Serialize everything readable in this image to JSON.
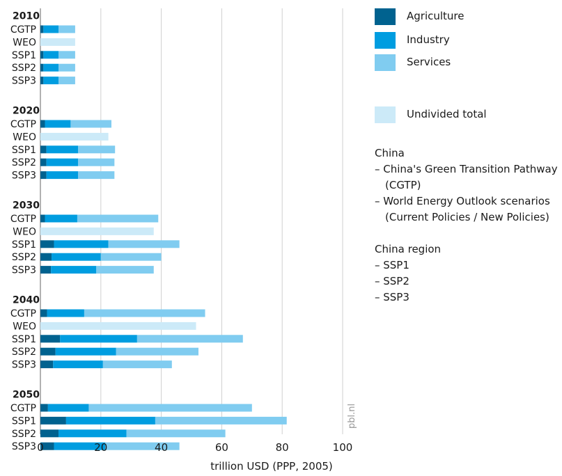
{
  "chart_data": {
    "type": "bar",
    "orientation": "horizontal",
    "stacked": true,
    "xlabel": "trillion USD (PPP, 2005)",
    "xlim": [
      0,
      100
    ],
    "xticks": [
      "0",
      "20",
      "40",
      "60",
      "80",
      "100"
    ],
    "grid": true,
    "watermark": "pbl.nl",
    "series": [
      {
        "name": "Agriculture",
        "color": "#00628f"
      },
      {
        "name": "Industry",
        "color": "#009de0"
      },
      {
        "name": "Services",
        "color": "#80ccf0"
      },
      {
        "name": "Undivided total",
        "color": "#cceaf8"
      }
    ],
    "groups": [
      {
        "year": "2010",
        "bars": [
          {
            "label": "CGTP",
            "agriculture": 1,
            "industry": 5,
            "services": 5.5
          },
          {
            "label": "WEO",
            "total": 11.5
          },
          {
            "label": "SSP1",
            "agriculture": 1,
            "industry": 5,
            "services": 5.5
          },
          {
            "label": "SSP2",
            "agriculture": 1,
            "industry": 5,
            "services": 5.5
          },
          {
            "label": "SSP3",
            "agriculture": 1,
            "industry": 5,
            "services": 5.5
          }
        ]
      },
      {
        "year": "2020",
        "bars": [
          {
            "label": "CGTP",
            "agriculture": 1.5,
            "industry": 8.5,
            "services": 13.5
          },
          {
            "label": "WEO",
            "total": 22.5
          },
          {
            "label": "SSP1",
            "agriculture": 2,
            "industry": 10.5,
            "services": 12.2
          },
          {
            "label": "SSP2",
            "agriculture": 2,
            "industry": 10.5,
            "services": 12
          },
          {
            "label": "SSP3",
            "agriculture": 2,
            "industry": 10.5,
            "services": 12
          }
        ]
      },
      {
        "year": "2030",
        "bars": [
          {
            "label": "CGTP",
            "agriculture": 1.5,
            "industry": 10.7,
            "services": 26.8
          },
          {
            "label": "WEO",
            "total": 37.5
          },
          {
            "label": "SSP1",
            "agriculture": 4.5,
            "industry": 18,
            "services": 23.5
          },
          {
            "label": "SSP2",
            "agriculture": 3.7,
            "industry": 16.3,
            "services": 20
          },
          {
            "label": "SSP3",
            "agriculture": 3.5,
            "industry": 15,
            "services": 19
          }
        ]
      },
      {
        "year": "2040",
        "bars": [
          {
            "label": "CGTP",
            "agriculture": 2.2,
            "industry": 12.3,
            "services": 40
          },
          {
            "label": "WEO",
            "total": 51.5
          },
          {
            "label": "SSP1",
            "agriculture": 6.5,
            "industry": 25.5,
            "services": 35
          },
          {
            "label": "SSP2",
            "agriculture": 5,
            "industry": 20,
            "services": 27.3
          },
          {
            "label": "SSP3",
            "agriculture": 4.2,
            "industry": 16.5,
            "services": 22.8
          }
        ]
      },
      {
        "year": "2050",
        "bars": [
          {
            "label": "CGTP",
            "agriculture": 2.5,
            "industry": 13.5,
            "services": 54
          },
          {
            "label": "SSP1",
            "agriculture": 8.5,
            "industry": 29.5,
            "services": 43.5
          },
          {
            "label": "SSP2",
            "agriculture": 6,
            "industry": 22.5,
            "services": 32.7
          },
          {
            "label": "SSP3",
            "agriculture": 4.5,
            "industry": 17,
            "services": 24.5
          }
        ]
      }
    ]
  },
  "legend": {
    "agriculture": "Agriculture",
    "industry": "Industry",
    "services": "Services",
    "undivided": "Undivided total"
  },
  "notes": {
    "china_title": "China",
    "china_item1_line1": "– China's Green Transition Pathway",
    "china_item1_line2": "(CGTP)",
    "china_item2_line1": "– World Energy Outlook scenarios",
    "china_item2_line2": "(Current Policies / New Policies)",
    "region_title": "China region",
    "region_item1": "– SSP1",
    "region_item2": "– SSP2",
    "region_item3": "– SSP3"
  }
}
